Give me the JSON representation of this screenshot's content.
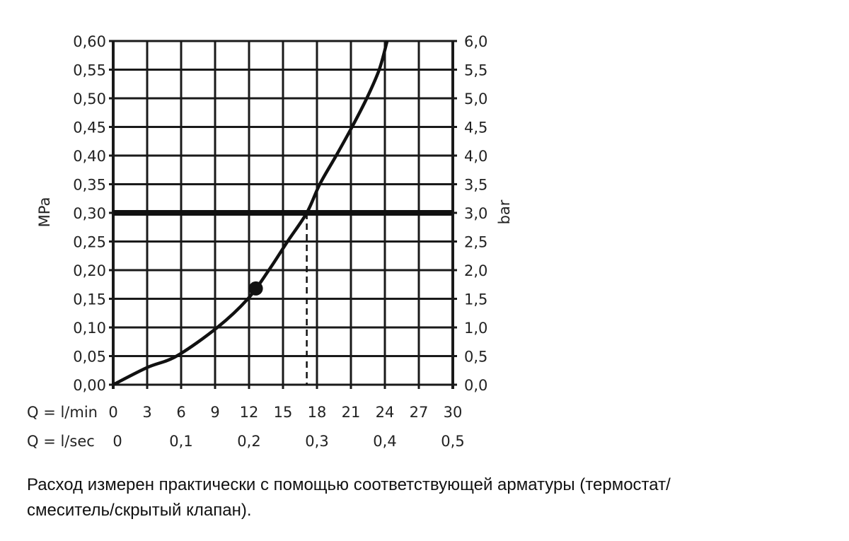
{
  "chart_data": {
    "type": "line",
    "ylabel_left": "MPa",
    "ylabel_right": "bar",
    "xlabel_rows": [
      "Q = l/min",
      "Q = l/sec"
    ],
    "x_ticks_lmin": [
      "0",
      "3",
      "6",
      "9",
      "12",
      "15",
      "18",
      "21",
      "24",
      "27",
      "30"
    ],
    "x_ticks_lsec": [
      "0",
      "0,1",
      "0,2",
      "0,3",
      "0,4",
      "0,5"
    ],
    "y_ticks_left": [
      "0,00",
      "0,05",
      "0,10",
      "0,15",
      "0,20",
      "0,25",
      "0,30",
      "0,35",
      "0,40",
      "0,45",
      "0,50",
      "0,55",
      "0,60"
    ],
    "y_ticks_right": [
      "0,0",
      "0,5",
      "1,0",
      "1,5",
      "2,0",
      "2,5",
      "3,0",
      "3,5",
      "4,0",
      "4,5",
      "5,0",
      "5,5",
      "6,0"
    ],
    "xlim": [
      0,
      30
    ],
    "ylim": [
      0,
      0.6
    ],
    "grid": true,
    "series": [
      {
        "x": [
          0,
          3,
          5.6,
          9.2,
          11.9,
          13.75,
          15.4,
          17.1,
          18.25,
          19.7,
          21.1,
          22.4,
          23.5,
          24.2
        ],
        "y": [
          0,
          0.03,
          0.05,
          0.1,
          0.15,
          0.2,
          0.25,
          0.3,
          0.35,
          0.4,
          0.45,
          0.5,
          0.55,
          0.6
        ]
      }
    ],
    "marker_point": {
      "x": 12.6,
      "y": 0.168
    },
    "reference_line_y": 0.3,
    "reference_drop_x": 17.1
  },
  "caption": {
    "line1": "Расход измерен практически с помощью соответствующей арматуры (термостат/",
    "line2": "смеситель/скрытый клапан)."
  }
}
